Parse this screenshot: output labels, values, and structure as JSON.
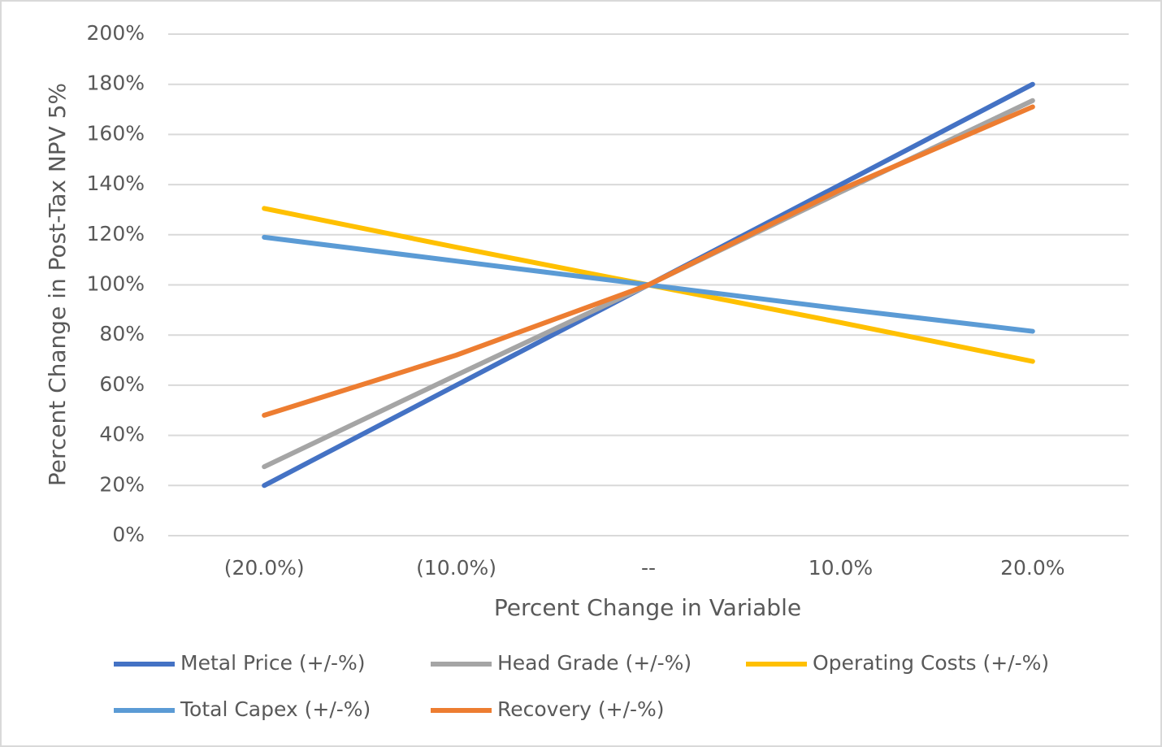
{
  "chart_data": {
    "type": "line",
    "x_label": "Percent Change in Variable",
    "y_label": "Percent Change in Post-Tax NPV 5%",
    "categories": [
      "(20.0%)",
      "(10.0%)",
      "--",
      "10.0%",
      "20.0%"
    ],
    "series": [
      {
        "name": "Metal Price (+/-%)",
        "color": "#4472c4",
        "values": [
          20,
          60,
          100,
          140,
          180
        ]
      },
      {
        "name": "Head Grade (+/-%)",
        "color": "#a5a5a5",
        "values": [
          27.5,
          64,
          100,
          137,
          173.5
        ]
      },
      {
        "name": "Operating Costs (+/-%)",
        "color": "#ffc000",
        "values": [
          130.5,
          115,
          100,
          85,
          69.5
        ]
      },
      {
        "name": "Total Capex (+/-%)",
        "color": "#5b9bd5",
        "values": [
          119,
          109.5,
          100,
          90.5,
          81.5
        ]
      },
      {
        "name": "Recovery (+/-%)",
        "color": "#ed7d31",
        "values": [
          48,
          72,
          100,
          138,
          171
        ]
      }
    ],
    "ylim": [
      0,
      200
    ],
    "yticks": [
      {
        "value": 0,
        "label": "0%"
      },
      {
        "value": 20,
        "label": "20%"
      },
      {
        "value": 40,
        "label": "40%"
      },
      {
        "value": 60,
        "label": "60%"
      },
      {
        "value": 80,
        "label": "80%"
      },
      {
        "value": 100,
        "label": "100%"
      },
      {
        "value": 120,
        "label": "120%"
      },
      {
        "value": 140,
        "label": "140%"
      },
      {
        "value": 160,
        "label": "160%"
      },
      {
        "value": 180,
        "label": "180%"
      },
      {
        "value": 200,
        "label": "200%"
      }
    ],
    "grid": true,
    "legend": "bottom"
  }
}
